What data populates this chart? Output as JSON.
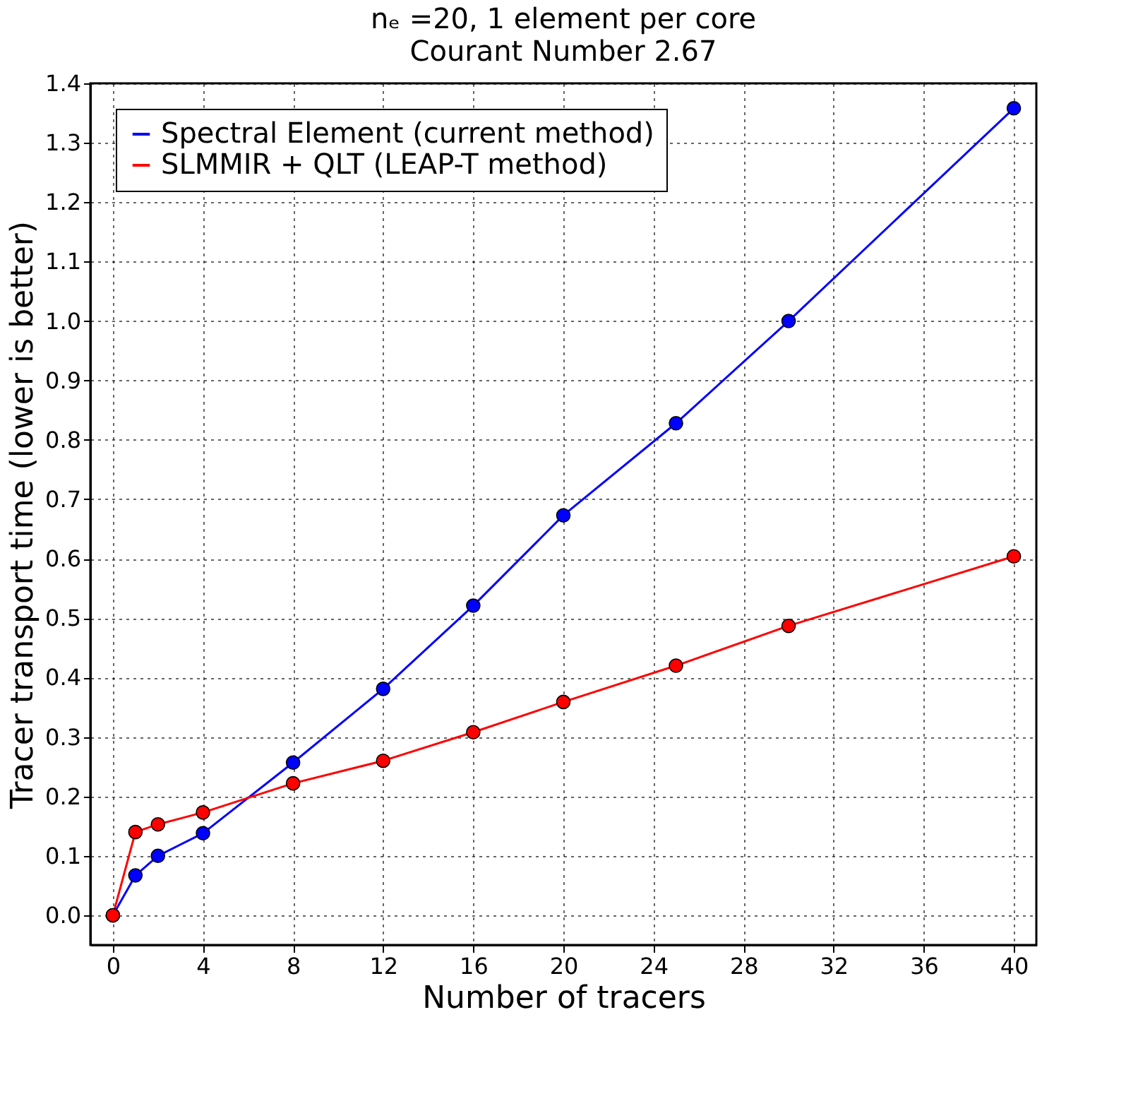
{
  "chart_data": {
    "type": "line",
    "title": "nₑ =20, 1 element per core",
    "subtitle": "Courant Number 2.67",
    "xlabel": "Number of tracers",
    "ylabel": "Tracer transport time (lower is better)",
    "x": [
      0,
      1,
      2,
      4,
      8,
      12,
      16,
      20,
      25,
      30,
      40
    ],
    "series": [
      {
        "name": "Spectral Element (current method)",
        "color": "#0000ff",
        "values": [
          0,
          0.067,
          0.1,
          0.138,
          0.257,
          0.381,
          0.521,
          0.673,
          0.828,
          1.0,
          1.358
        ]
      },
      {
        "name": "SLMMIR + QLT (LEAP-T method)",
        "color": "#ff0000",
        "values": [
          0,
          0.14,
          0.153,
          0.173,
          0.222,
          0.26,
          0.308,
          0.359,
          0.42,
          0.487,
          0.604
        ]
      }
    ],
    "xlim": [
      -1,
      41
    ],
    "xticks": [
      0,
      4,
      8,
      12,
      16,
      20,
      24,
      28,
      32,
      36,
      40
    ],
    "ylim": [
      -0.05,
      1.4
    ],
    "yticks": [
      {
        "value": 0,
        "label": "0.0"
      },
      0.1,
      0.2,
      0.3,
      0.4,
      0.5,
      0.6,
      0.7,
      0.8,
      0.9,
      {
        "value": 1,
        "label": "1.0"
      },
      1.1,
      1.2,
      1.3,
      1.4
    ],
    "grid": true,
    "legend": "top left",
    "marker": "circle",
    "line_style": "solid"
  }
}
